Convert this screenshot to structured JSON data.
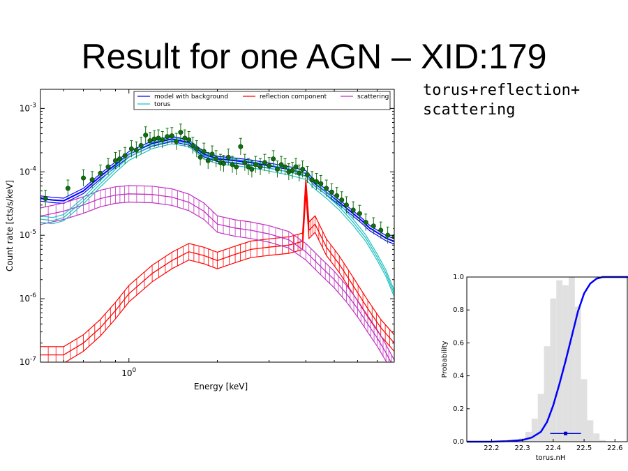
{
  "slide": {
    "title": "Result for one AGN – XID:179",
    "model_line1": "torus+reflection+",
    "model_line2": "scattering"
  },
  "chart_data": [
    {
      "type": "line",
      "xlabel": "Energy [keV]",
      "ylabel": "Count rate [cts/s/keV]",
      "xscale": "log",
      "yscale": "log",
      "xlim": [
        0.5,
        8.0
      ],
      "ylim": [
        1e-07,
        0.002
      ],
      "xtick_labels": [
        {
          "value": 1.0,
          "base": "10",
          "exp": "0"
        }
      ],
      "ytick_labels": [
        {
          "value": 1e-07,
          "base": "10",
          "exp": "-7"
        },
        {
          "value": 1e-06,
          "base": "10",
          "exp": "-6"
        },
        {
          "value": 1e-05,
          "base": "10",
          "exp": "-5"
        },
        {
          "value": 0.0001,
          "base": "10",
          "exp": "-4"
        },
        {
          "value": 0.001,
          "base": "10",
          "exp": "-3"
        }
      ],
      "legend_position": "top-right",
      "series": [
        {
          "name": "model with background",
          "color": "#0000ff",
          "x": [
            0.5,
            0.55,
            0.6,
            0.7,
            0.8,
            0.9,
            1.0,
            1.2,
            1.4,
            1.6,
            1.8,
            2.0,
            2.3,
            2.6,
            3.0,
            3.5,
            4.0,
            4.3,
            4.7,
            5.2,
            5.8,
            6.2,
            6.6,
            7.0,
            7.5,
            8.0
          ],
          "y": [
            3.8e-05,
            3.6e-05,
            3.5e-05,
            5e-05,
            8.5e-05,
            0.00013,
            0.00019,
            0.00028,
            0.00033,
            0.00029,
            0.00019,
            0.00016,
            0.00015,
            0.00014,
            0.000125,
            0.00011,
            9.5e-05,
            6.5e-05,
            4.8e-05,
            3.3e-05,
            2.2e-05,
            1.7e-05,
            1.3e-05,
            1.1e-05,
            9e-06,
            8e-06
          ]
        },
        {
          "name": "reflection component",
          "color": "#ff0000",
          "x": [
            0.5,
            0.6,
            0.7,
            0.8,
            0.9,
            1.0,
            1.2,
            1.4,
            1.6,
            1.8,
            2.0,
            2.3,
            2.6,
            3.0,
            3.5,
            3.9,
            4.0,
            4.1,
            4.3,
            4.7,
            5.2,
            5.8,
            6.5,
            7.2,
            8.0
          ],
          "y": [
            1.3e-07,
            1.3e-07,
            2e-07,
            3.5e-07,
            6.5e-07,
            1.2e-06,
            2.5e-06,
            4e-06,
            5.5e-06,
            4.8e-06,
            4e-06,
            5e-06,
            6e-06,
            6.5e-06,
            7e-06,
            8e-06,
            6e-05,
            1.2e-05,
            1.5e-05,
            6.5e-06,
            3.5e-06,
            1.6e-06,
            7e-07,
            3.5e-07,
            2e-07
          ]
        },
        {
          "name": "scattering",
          "color": "#c030c0",
          "x": [
            0.5,
            0.6,
            0.7,
            0.8,
            0.9,
            1.0,
            1.2,
            1.4,
            1.6,
            1.8,
            2.0,
            2.3,
            2.6,
            3.0,
            3.5,
            4.0,
            4.5,
            5.0,
            5.5,
            6.0,
            6.5,
            7.0,
            7.5,
            8.0
          ],
          "y": [
            2e-05,
            2.4e-05,
            3e-05,
            3.8e-05,
            4.3e-05,
            4.5e-05,
            4.4e-05,
            4e-05,
            3.3e-05,
            2.4e-05,
            1.5e-05,
            1.3e-05,
            1.2e-05,
            1.05e-05,
            8.5e-06,
            5.5e-06,
            3.2e-06,
            2e-06,
            1.2e-06,
            7e-07,
            4e-07,
            2.4e-07,
            1.4e-07,
            8e-08
          ]
        },
        {
          "name": "torus",
          "color": "#20c0c0",
          "x": [
            0.5,
            0.55,
            0.6,
            0.7,
            0.8,
            0.9,
            1.0,
            1.2,
            1.4,
            1.6,
            1.8,
            2.0,
            2.3,
            2.6,
            3.0,
            3.5,
            4.0,
            4.3,
            4.7,
            5.2,
            5.8,
            6.4,
            7.0,
            7.5,
            8.0
          ],
          "y": [
            1.8e-05,
            1.7e-05,
            1.9e-05,
            3.5e-05,
            6.5e-05,
            0.00011,
            0.00017,
            0.00026,
            0.00031,
            0.00028,
            0.00018,
            0.00015,
            0.00014,
            0.00013,
            0.000115,
            0.0001,
            8.5e-05,
            6e-05,
            4.3e-05,
            2.8e-05,
            1.6e-05,
            9e-06,
            4.5e-06,
            2.5e-06,
            1.2e-06
          ]
        }
      ],
      "data_points": {
        "color": "#107010",
        "x": [
          0.52,
          0.62,
          0.7,
          0.75,
          0.8,
          0.85,
          0.9,
          0.93,
          0.97,
          1.02,
          1.06,
          1.1,
          1.14,
          1.18,
          1.22,
          1.26,
          1.3,
          1.35,
          1.4,
          1.45,
          1.5,
          1.55,
          1.6,
          1.65,
          1.7,
          1.75,
          1.8,
          1.86,
          1.92,
          1.98,
          2.05,
          2.1,
          2.18,
          2.25,
          2.32,
          2.4,
          2.48,
          2.55,
          2.62,
          2.7,
          2.8,
          2.9,
          3.0,
          3.1,
          3.2,
          3.3,
          3.4,
          3.5,
          3.6,
          3.7,
          3.8,
          3.9,
          4.05,
          4.2,
          4.35,
          4.5,
          4.7,
          4.9,
          5.1,
          5.3,
          5.5,
          5.8,
          6.1,
          6.4,
          6.8,
          7.2,
          7.6,
          8.0
        ],
        "y": [
          3.8e-05,
          5.5e-05,
          8e-05,
          7.5e-05,
          9.5e-05,
          0.00012,
          0.00015,
          0.00016,
          0.00018,
          0.00023,
          0.00022,
          0.00026,
          0.00038,
          0.00031,
          0.00033,
          0.00034,
          0.00032,
          0.00036,
          0.00037,
          0.0003,
          0.00042,
          0.00034,
          0.00032,
          0.00026,
          0.00023,
          0.00017,
          0.00021,
          0.00015,
          0.00019,
          0.00016,
          0.00014,
          0.000135,
          0.00017,
          0.00013,
          0.00012,
          0.00025,
          0.00014,
          0.00012,
          0.00011,
          0.00013,
          0.00012,
          0.00014,
          0.000125,
          0.00016,
          0.00011,
          0.00013,
          0.00012,
          0.0001,
          0.000105,
          0.00012,
          9.5e-05,
          0.00011,
          9e-05,
          7.5e-05,
          7e-05,
          6.5e-05,
          5.5e-05,
          4.8e-05,
          4.2e-05,
          3.6e-05,
          3e-05,
          2.5e-05,
          2.2e-05,
          1.6e-05,
          1.4e-05,
          1.2e-05,
          1e-05,
          9.5e-06
        ]
      }
    },
    {
      "type": "area",
      "xlabel": "torus.nH",
      "ylabel": "Probability",
      "xlim": [
        2.212,
        2.264
      ],
      "ylim": [
        0.0,
        1.0
      ],
      "xtick_labels": [
        "22.2",
        "22.3",
        "22.4",
        "22.5",
        "22.6"
      ],
      "ytick_labels": [
        "0.0",
        "0.2",
        "0.4",
        "0.6",
        "0.8",
        "1.0"
      ],
      "histogram": {
        "color": "#e0e0e0",
        "x": [
          22.28,
          22.3,
          22.32,
          22.34,
          22.36,
          22.38,
          22.4,
          22.42,
          22.44,
          22.46,
          22.48,
          22.5,
          22.52,
          22.54,
          22.56
        ],
        "y": [
          0.01,
          0.02,
          0.06,
          0.14,
          0.29,
          0.58,
          0.87,
          0.98,
          0.95,
          1.0,
          0.82,
          0.38,
          0.13,
          0.05,
          0.01
        ]
      },
      "cdf": {
        "color": "#0000ff",
        "x": [
          22.12,
          22.2,
          22.25,
          22.3,
          22.33,
          22.36,
          22.38,
          22.4,
          22.42,
          22.44,
          22.46,
          22.48,
          22.5,
          22.52,
          22.54,
          22.56,
          22.6,
          22.66
        ],
        "y": [
          0.0,
          0.0,
          0.003,
          0.01,
          0.025,
          0.06,
          0.12,
          0.22,
          0.35,
          0.49,
          0.64,
          0.79,
          0.9,
          0.96,
          0.99,
          1.0,
          1.0,
          1.0
        ]
      },
      "estimate": {
        "value": 22.44,
        "low": 22.39,
        "high": 22.49,
        "y": 0.05
      }
    }
  ]
}
